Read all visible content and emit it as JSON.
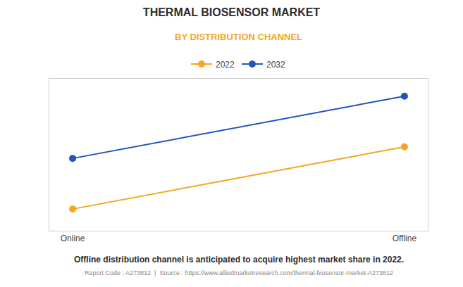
{
  "chart_data": {
    "type": "line",
    "title": "THERMAL BIOSENSOR MARKET",
    "subtitle": "BY DISTRIBUTION CHANNEL",
    "categories": [
      "Online",
      "Offline"
    ],
    "series": [
      {
        "name": "2022",
        "color": "#f5a623",
        "marker": "circle",
        "values": [
          0.15,
          0.58
        ]
      },
      {
        "name": "2032",
        "color": "#2255bb",
        "marker": "circle",
        "values": [
          0.5,
          0.93
        ]
      }
    ],
    "ylim": [
      0.0,
      1.05
    ],
    "yticks": [],
    "grid": false,
    "tick_labels": "x",
    "legend": "top",
    "annotations": [
      "Offline distribution channel is anticipated to acquire highest market share in 2022.",
      "Report Code : A273812  |  Source : https://www.alliedmarketresearch.com/thermal-biosensor-market-A273812"
    ]
  }
}
